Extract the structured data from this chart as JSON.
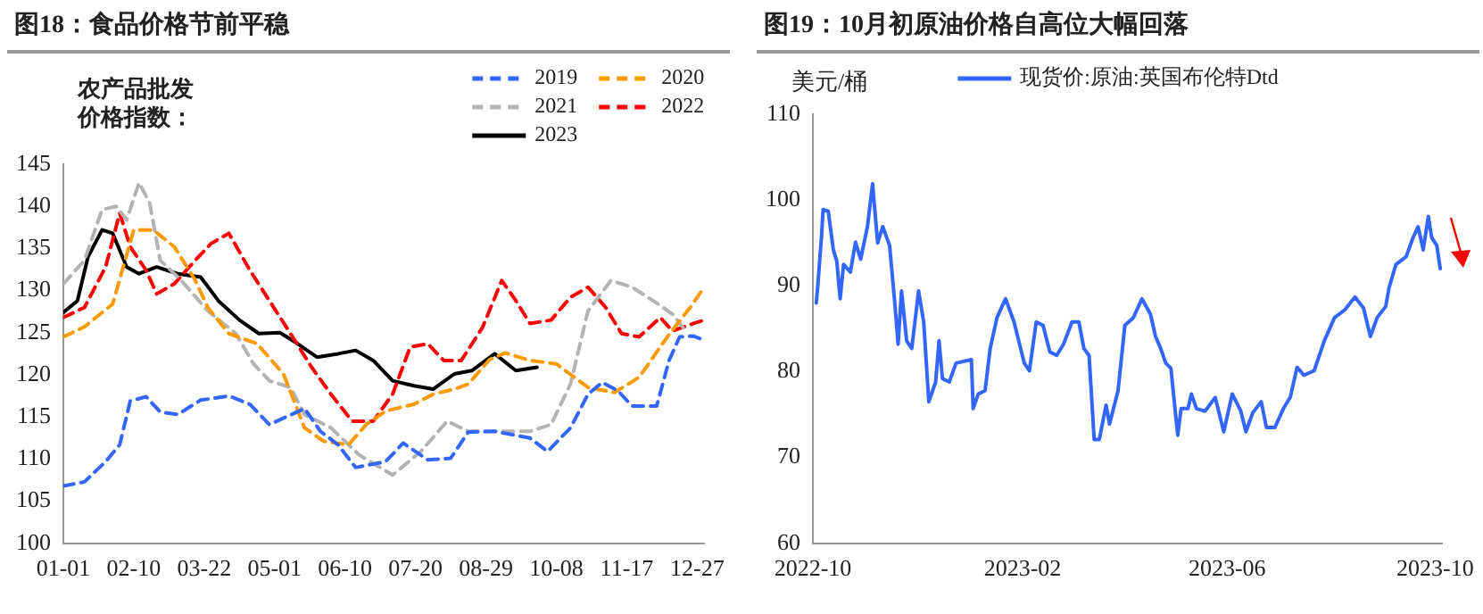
{
  "chart_data": [
    {
      "type": "line",
      "title": "图18：食品价格节前平稳",
      "ylabel": "农产品批发价格指数：",
      "legend": "top right",
      "marker": "none",
      "xlim": [
        "--01-01",
        "--12-31"
      ],
      "ylim": [
        100,
        145
      ],
      "xticks": [
        {
          "value": "--01-01",
          "label": "01-01"
        },
        {
          "value": "--02-10",
          "label": "02-10"
        },
        {
          "value": "--03-22",
          "label": "03-22"
        },
        {
          "value": "--05-01",
          "label": "05-01"
        },
        {
          "value": "--06-10",
          "label": "06-10"
        },
        {
          "value": "--07-20",
          "label": "07-20"
        },
        {
          "value": "--08-29",
          "label": "08-29"
        },
        {
          "value": "--10-08",
          "label": "10-08"
        },
        {
          "value": "--11-17",
          "label": "11-17"
        },
        {
          "value": "--12-27",
          "label": "12-27"
        }
      ],
      "yticks": [
        100,
        105,
        110,
        115,
        120,
        125,
        130,
        135,
        140,
        145
      ],
      "series": [
        {
          "name": "2019",
          "color": "#3366ff",
          "line_style": "dashed",
          "x": [
            "--01-01",
            "--01-13",
            "--01-25",
            "--02-02",
            "--02-08",
            "--02-17",
            "--02-25",
            "--03-07",
            "--03-20",
            "--04-05",
            "--04-17",
            "--04-28",
            "--05-18",
            "--05-27",
            "--06-06",
            "--06-16",
            "--07-03",
            "--07-13",
            "--07-27",
            "--08-09",
            "--08-19",
            "--09-03",
            "--09-23",
            "--10-03",
            "--10-16",
            "--10-26",
            "--11-03",
            "--11-12",
            "--11-20",
            "--12-04",
            "--12-11",
            "--12-17",
            "--12-25",
            "--12-31"
          ],
          "values": [
            106.8,
            107.3,
            109.7,
            111.7,
            116.9,
            117.4,
            115.6,
            115.3,
            117,
            117.5,
            116.5,
            114.1,
            116,
            113.3,
            111.7,
            109,
            109.7,
            111.9,
            109.9,
            110.1,
            113.2,
            113.3,
            112.5,
            110.9,
            113.7,
            117.7,
            119.1,
            118.1,
            116.3,
            116.3,
            121.7,
            124.5,
            124.6,
            124.1
          ]
        },
        {
          "name": "2020",
          "color": "#ff9900",
          "line_style": "dashed",
          "x": [
            "--01-01",
            "--01-13",
            "--01-29",
            "--02-10",
            "--02-21",
            "--03-05",
            "--03-17",
            "--03-24",
            "--04-05",
            "--04-21",
            "--05-06",
            "--05-18",
            "--05-29",
            "--06-12",
            "--06-22",
            "--07-03",
            "--07-19",
            "--07-30",
            "--08-11",
            "--08-19",
            "--08-31",
            "--09-09",
            "--09-23",
            "--10-08",
            "--10-26",
            "--11-10",
            "--11-24",
            "--12-10",
            "--12-23",
            "--12-31"
          ],
          "values": [
            124.5,
            125.7,
            128.4,
            137.2,
            137.2,
            135.2,
            131.2,
            128,
            124.9,
            123.7,
            120.1,
            113.7,
            112.1,
            111.7,
            114.1,
            115.7,
            116.5,
            117.7,
            118.3,
            118.9,
            121.8,
            122.6,
            121.7,
            121.3,
            118.5,
            117.9,
            119.7,
            124.5,
            128,
            130.4
          ]
        },
        {
          "name": "2021",
          "color": "#b3b3b3",
          "line_style": "dashed",
          "x": [
            "--01-01",
            "--01-13",
            "--01-23",
            "--01-31",
            "--02-06",
            "--02-13",
            "--02-19",
            "--02-25",
            "--03-09",
            "--03-24",
            "--04-09",
            "--04-19",
            "--04-28",
            "--05-10",
            "--05-18",
            "--06-02",
            "--06-18",
            "--07-07",
            "--07-23",
            "--08-07",
            "--08-19",
            "--09-03",
            "--09-23",
            "--10-05",
            "--10-16",
            "--10-26",
            "--11-08",
            "--11-20",
            "--12-02",
            "--12-13",
            "--12-19"
          ],
          "values": [
            130.8,
            133.6,
            139.6,
            140,
            138.4,
            142.8,
            140.4,
            133.6,
            131.2,
            127.6,
            124.9,
            121.3,
            119.3,
            118.5,
            115.3,
            113.7,
            110.5,
            108.1,
            110.9,
            114.5,
            113.3,
            113.3,
            113.3,
            114.1,
            118.9,
            127.6,
            131.2,
            130.4,
            128.8,
            127.2,
            125.6
          ]
        },
        {
          "name": "2022",
          "color": "#ff0000",
          "line_style": "dashed",
          "x": [
            "--01-01",
            "--01-13",
            "--01-25",
            "--02-02",
            "--02-08",
            "--02-17",
            "--02-23",
            "--03-05",
            "--03-17",
            "--03-26",
            "--04-05",
            "--04-17",
            "--04-28",
            "--05-10",
            "--05-22",
            "--06-02",
            "--06-14",
            "--06-26",
            "--07-07",
            "--07-17",
            "--07-27",
            "--08-05",
            "--08-15",
            "--08-27",
            "--09-07",
            "--09-15",
            "--09-23",
            "--10-05",
            "--10-16",
            "--10-26",
            "--11-05",
            "--11-14",
            "--11-24",
            "--12-06",
            "--12-13",
            "--12-25",
            "--12-31"
          ],
          "values": [
            126.8,
            128,
            132.8,
            139.2,
            135.2,
            132.4,
            129.6,
            130.8,
            133.6,
            135.6,
            136.8,
            132.4,
            128.8,
            124.9,
            120.9,
            117.7,
            114.5,
            114.5,
            117.7,
            123.3,
            123.7,
            121.7,
            121.7,
            125.6,
            131.2,
            128.8,
            126.1,
            126.5,
            129.2,
            130.4,
            128,
            124.9,
            124.5,
            126.8,
            125.2,
            126.1,
            126.5
          ]
        },
        {
          "name": "2023",
          "color": "#000000",
          "line_style": "solid",
          "x": [
            "--01-01",
            "--01-09",
            "--01-15",
            "--01-23",
            "--01-29",
            "--02-06",
            "--02-13",
            "--02-23",
            "--03-07",
            "--03-20",
            "--03-30",
            "--04-11",
            "--04-22",
            "--05-04",
            "--05-14",
            "--05-25",
            "--06-06",
            "--06-16",
            "--06-26",
            "--07-07",
            "--07-19",
            "--07-30",
            "--08-11",
            "--08-21",
            "--09-03",
            "--09-15",
            "--09-27"
          ],
          "values": [
            127.4,
            128.8,
            134,
            137.2,
            136.8,
            132.8,
            132,
            132.8,
            132,
            131.6,
            128.8,
            126.5,
            124.9,
            125,
            123.7,
            122.1,
            122.5,
            122.9,
            121.7,
            119.3,
            118.7,
            118.3,
            120.1,
            120.5,
            122.5,
            120.5,
            120.9
          ]
        }
      ]
    },
    {
      "type": "line",
      "title": "图19：10月初原油价格自高位大幅回落",
      "ylabel": "美元/桶",
      "legend": "top",
      "marker": "none",
      "xlim": [
        "2022-10-01",
        "2023-10-05"
      ],
      "ylim": [
        60,
        110
      ],
      "xticks": [
        "2022-10",
        "2023-02",
        "2023-06",
        "2023-10"
      ],
      "yticks": [
        60,
        70,
        80,
        90,
        100,
        110
      ],
      "series": [
        {
          "name": "现货价:原油:英国布伦特Dtd",
          "color": "#3366ff",
          "line_style": "solid",
          "x": [
            "2022-10-03",
            "2022-10-04",
            "2022-10-06",
            "2022-10-07",
            "2022-10-10",
            "2022-10-13",
            "2022-10-15",
            "2022-10-17",
            "2022-10-19",
            "2022-10-23",
            "2022-10-26",
            "2022-10-29",
            "2022-11-02",
            "2022-11-05",
            "2022-11-08",
            "2022-11-11",
            "2022-11-15",
            "2022-11-18",
            "2022-11-20",
            "2022-11-22",
            "2022-11-25",
            "2022-11-28",
            "2022-12-02",
            "2022-12-05",
            "2022-12-08",
            "2022-12-12",
            "2022-12-14",
            "2022-12-16",
            "2022-12-20",
            "2022-12-24",
            "2023-01-02",
            "2023-01-03",
            "2023-01-06",
            "2023-01-10",
            "2023-01-13",
            "2023-01-17",
            "2023-01-22",
            "2023-01-27",
            "2023-02-02",
            "2023-02-05",
            "2023-02-09",
            "2023-02-13",
            "2023-02-17",
            "2023-02-21",
            "2023-02-25",
            "2023-03-02",
            "2023-03-06",
            "2023-03-09",
            "2023-03-12",
            "2023-03-15",
            "2023-03-18",
            "2023-03-22",
            "2023-03-24",
            "2023-03-29",
            "2023-04-02",
            "2023-04-07",
            "2023-04-12",
            "2023-04-17",
            "2023-04-20",
            "2023-04-23",
            "2023-04-26",
            "2023-04-29",
            "2023-05-03",
            "2023-05-05",
            "2023-05-09",
            "2023-05-11",
            "2023-05-14",
            "2023-05-19",
            "2023-05-25",
            "2023-05-30",
            "2023-06-04",
            "2023-06-09",
            "2023-06-12",
            "2023-06-16",
            "2023-06-21",
            "2023-06-24",
            "2023-06-29",
            "2023-07-04",
            "2023-07-08",
            "2023-07-12",
            "2023-07-16",
            "2023-07-22",
            "2023-07-28",
            "2023-08-03",
            "2023-08-09",
            "2023-08-15",
            "2023-08-20",
            "2023-08-24",
            "2023-08-28",
            "2023-09-02",
            "2023-09-04",
            "2023-09-08",
            "2023-09-14",
            "2023-09-18",
            "2023-09-21",
            "2023-09-24",
            "2023-09-27",
            "2023-09-29",
            "2023-10-02",
            "2023-10-04"
          ],
          "values": [
            88,
            90.3,
            95.6,
            98.9,
            98.7,
            94.2,
            92.9,
            88.5,
            92.5,
            91.6,
            95.1,
            93.1,
            96.9,
            101.9,
            95,
            96.9,
            94.7,
            88.1,
            83.2,
            89.4,
            83.6,
            82.7,
            89.4,
            85.8,
            76.5,
            78.8,
            83.6,
            79.2,
            78.8,
            81,
            81.4,
            75.7,
            77.4,
            77.8,
            82.7,
            86.3,
            88.5,
            85.8,
            81,
            80.1,
            85.8,
            85.4,
            82.3,
            81.9,
            83.2,
            85.8,
            85.8,
            82.7,
            81.9,
            72.1,
            72.1,
            76.1,
            73.9,
            77.8,
            85.4,
            86.3,
            88.5,
            86.7,
            84.1,
            82.7,
            81,
            80.4,
            72.6,
            75.7,
            75.7,
            77.4,
            75.7,
            75.4,
            77,
            73,
            77.4,
            75.4,
            73,
            75.2,
            76.5,
            73.5,
            73.5,
            75.7,
            77,
            80.5,
            79.6,
            80.1,
            83.6,
            86.3,
            87.2,
            88.7,
            87.4,
            84.1,
            86.3,
            87.6,
            89.8,
            92.5,
            93.4,
            95.6,
            96.9,
            94.2,
            98.1,
            95.6,
            94.7,
            92
          ]
        }
      ]
    }
  ]
}
